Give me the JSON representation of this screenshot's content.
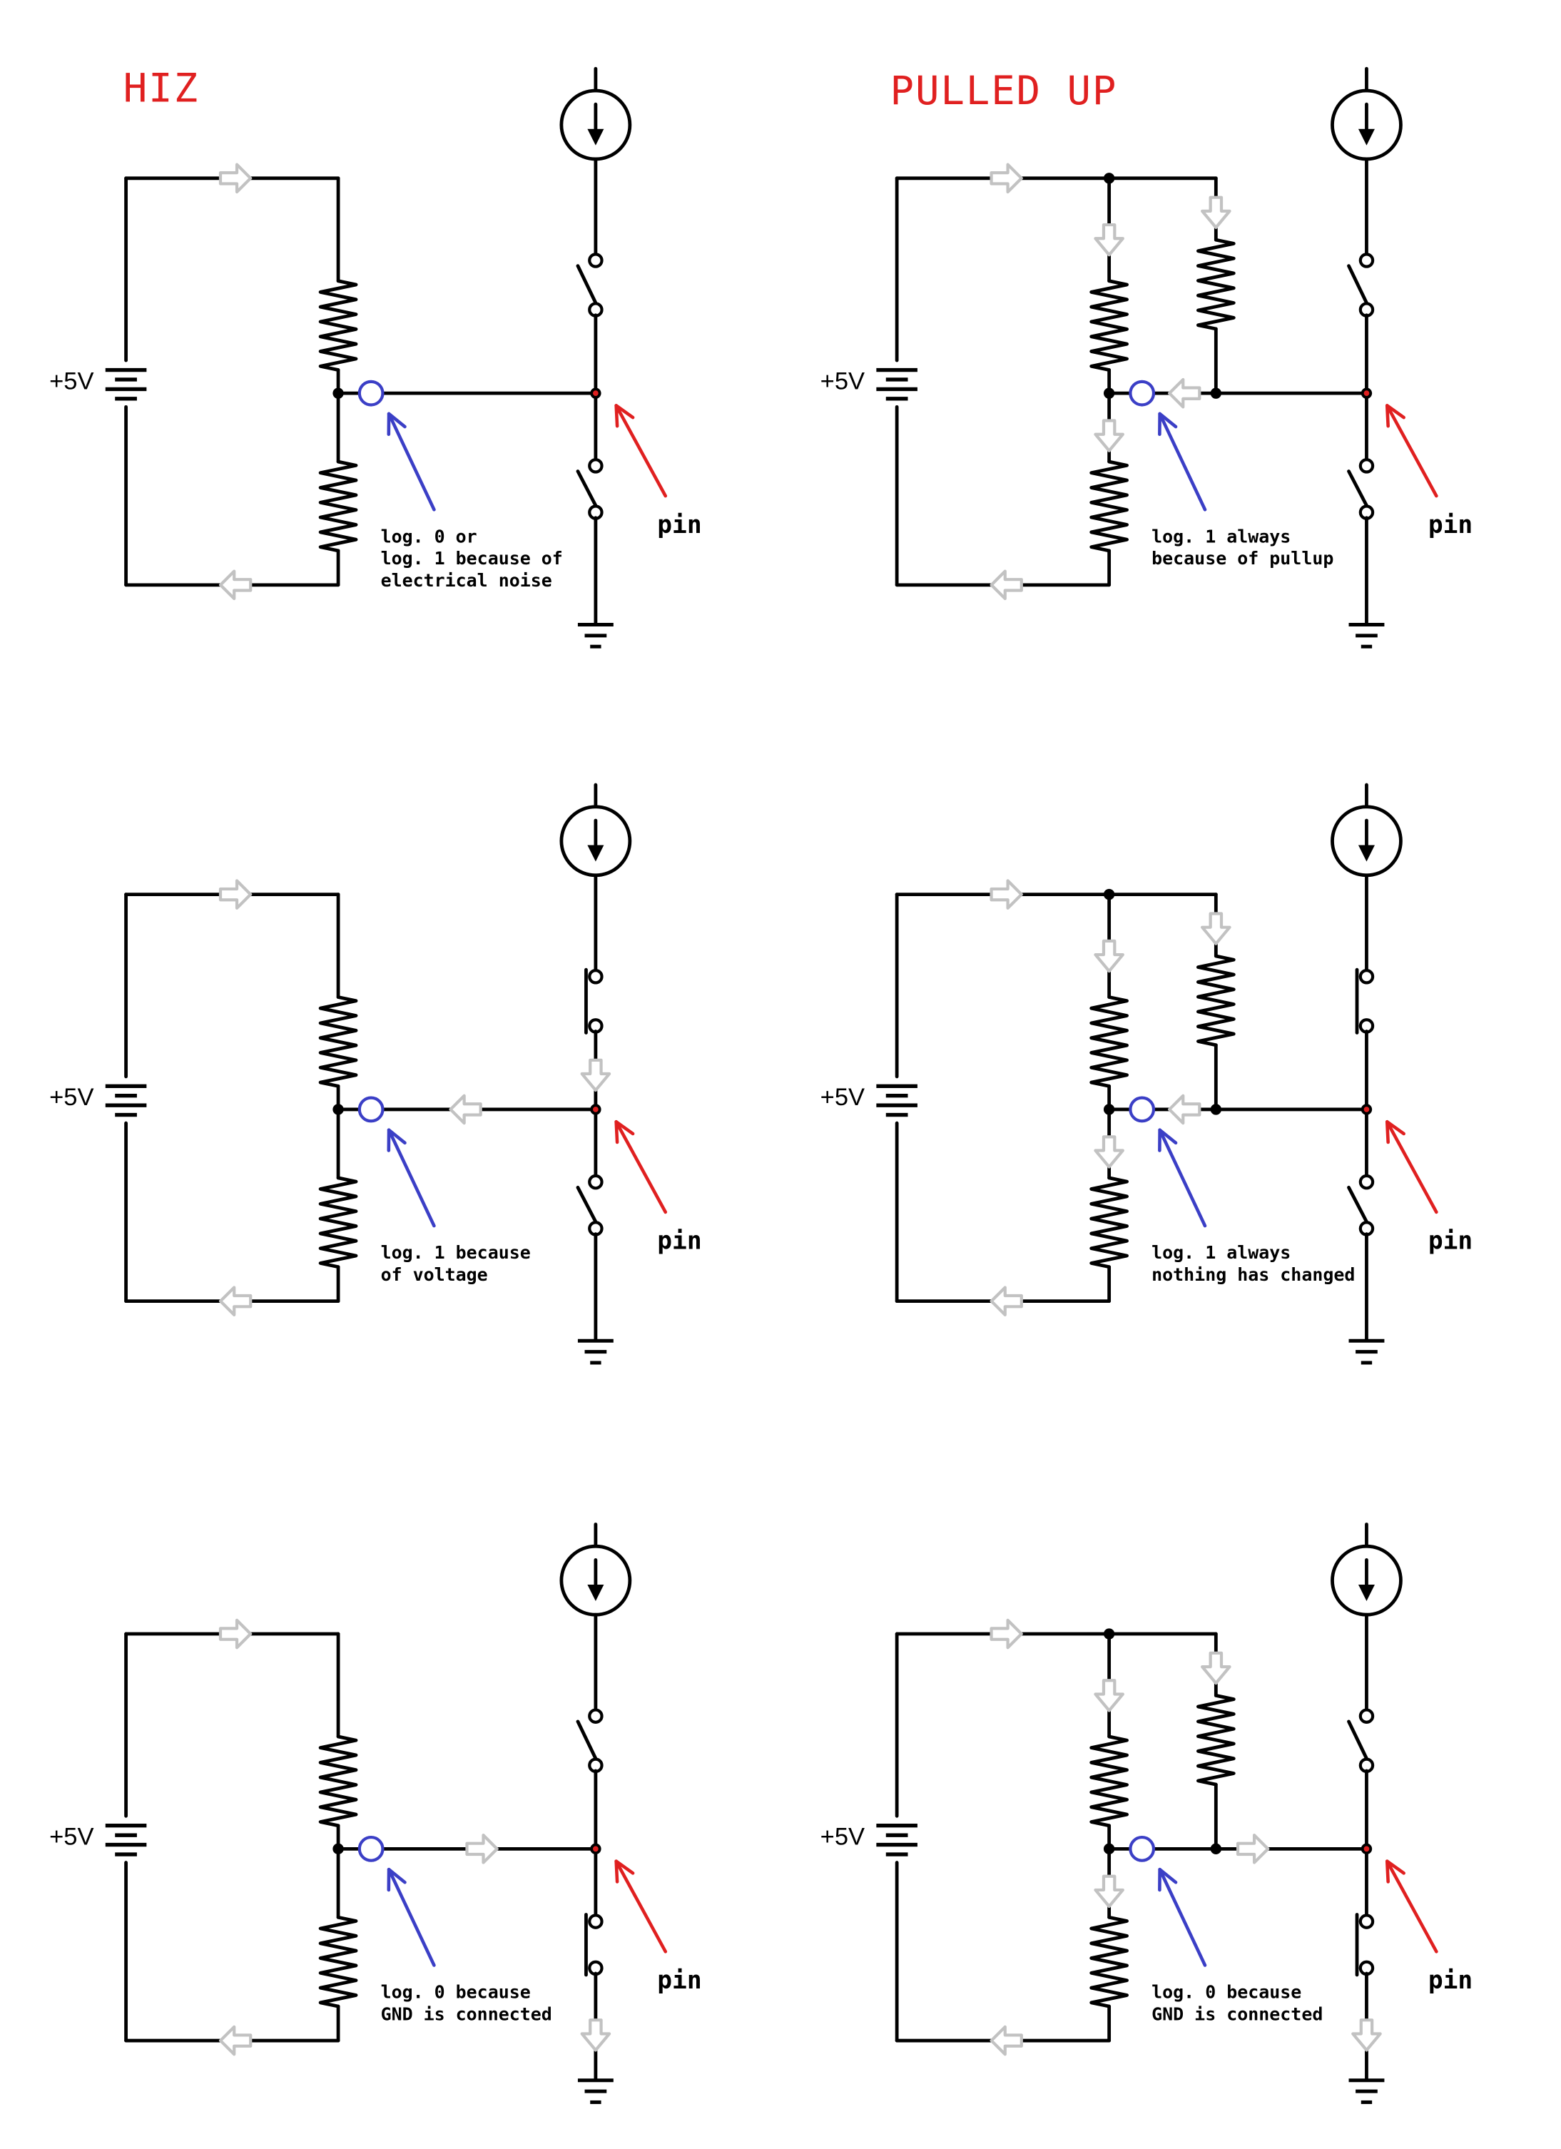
{
  "titles": {
    "hiz": "HIZ",
    "pulled_up": "PULLED UP"
  },
  "supply_label": "+5V",
  "pin_label": "pin",
  "colors": {
    "wire": "#000000",
    "title": "#e02020",
    "probe_ring": "#3b3fc6",
    "pin_arrow": "#e02020",
    "flow_arrow": "#c2c2c2"
  },
  "diagrams": [
    {
      "id": "hiz-open",
      "column": "hiz",
      "pullup": false,
      "top_switch": "open",
      "bottom_switch": "open",
      "note": [
        "log. 0 or",
        "log. 1 because of",
        "electrical noise"
      ]
    },
    {
      "id": "pulled-up-open",
      "column": "pulled_up",
      "pullup": true,
      "top_switch": "open",
      "bottom_switch": "open",
      "note": [
        "log. 1 always",
        "because of pullup"
      ]
    },
    {
      "id": "hiz-vcc",
      "column": "hiz",
      "pullup": false,
      "top_switch": "closed",
      "bottom_switch": "open",
      "note": [
        "log. 1 because",
        "of voltage"
      ]
    },
    {
      "id": "pulled-up-vcc",
      "column": "pulled_up",
      "pullup": true,
      "top_switch": "closed",
      "bottom_switch": "open",
      "note": [
        "log. 1 always",
        "nothing has changed"
      ]
    },
    {
      "id": "hiz-gnd",
      "column": "hiz",
      "pullup": false,
      "top_switch": "open",
      "bottom_switch": "closed",
      "note": [
        "log. 0 because",
        "GND is connected"
      ]
    },
    {
      "id": "pulled-up-gnd",
      "column": "pulled_up",
      "pullup": true,
      "top_switch": "open",
      "bottom_switch": "closed",
      "note": [
        "log. 0 because",
        "GND is connected"
      ]
    }
  ]
}
